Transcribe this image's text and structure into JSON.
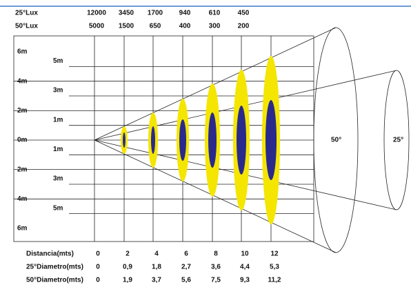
{
  "lux_table": {
    "rows": [
      {
        "label": "25°Lux",
        "values": [
          "12000",
          "3450",
          "1700",
          "940",
          "610",
          "450"
        ]
      },
      {
        "label": "50°Lux",
        "values": [
          "5000",
          "1500",
          "650",
          "400",
          "300",
          "200"
        ]
      }
    ]
  },
  "distance_table": {
    "rows": [
      {
        "label": "Distancia(mts)",
        "values": [
          "0",
          "2",
          "4",
          "6",
          "8",
          "10",
          "12"
        ]
      },
      {
        "label": "25°Diametro(mts)",
        "values": [
          "0",
          "0,9",
          "1,8",
          "2,7",
          "3,6",
          "4,4",
          "5,3"
        ]
      },
      {
        "label": "50°Diametro(mts)",
        "values": [
          "0",
          "1,9",
          "3,7",
          "5,6",
          "7,5",
          "9,3",
          "11,2"
        ]
      }
    ]
  },
  "axis_labels": {
    "major": [
      "6m",
      "4m",
      "2m",
      "0m",
      "2m",
      "4m",
      "6m"
    ],
    "minor": [
      "5m",
      "3m",
      "1m",
      "1m",
      "3m",
      "5m"
    ]
  },
  "cone_labels": [
    "50°",
    "25°"
  ]
}
